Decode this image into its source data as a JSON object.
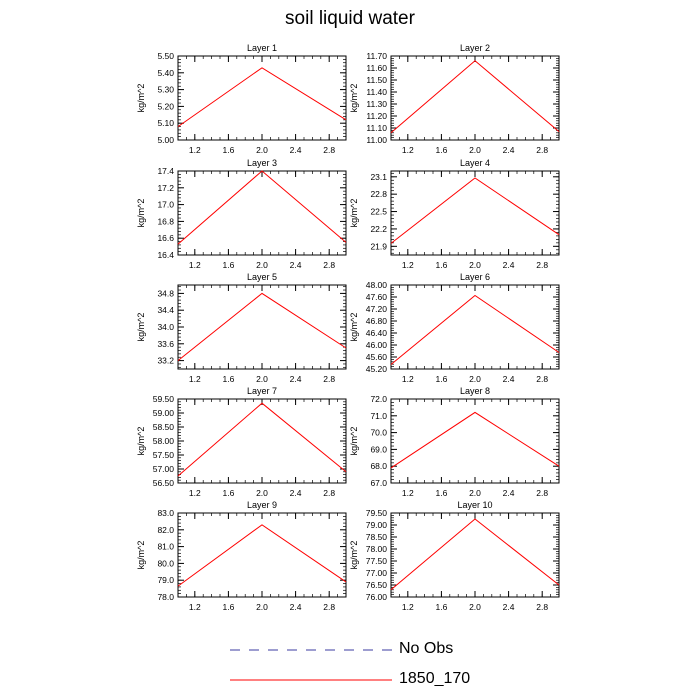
{
  "title": "soil liquid water",
  "legend": {
    "entries": [
      {
        "label": "No Obs",
        "style": "dashed",
        "color": "#3b3ba0"
      },
      {
        "label": "1850_170",
        "style": "solid",
        "color": "#ff0000"
      }
    ]
  },
  "line_color": "#ff0000",
  "chart_data": [
    {
      "type": "line",
      "title": "Layer 1",
      "ylabel": "kg/m^2",
      "xlim": [
        1.0,
        3.0
      ],
      "ylim": [
        5.0,
        5.5
      ],
      "xticks": [
        "1.2",
        "1.6",
        "2.0",
        "2.4",
        "2.8"
      ],
      "yticks": [
        "5.00",
        "5.10",
        "5.20",
        "5.30",
        "5.40",
        "5.50"
      ],
      "series": [
        {
          "name": "1850_170",
          "x": [
            1,
            2,
            3
          ],
          "y": [
            5.08,
            5.43,
            5.12
          ]
        }
      ]
    },
    {
      "type": "line",
      "title": "Layer 2",
      "ylabel": "kg/m^2",
      "xlim": [
        1.0,
        3.0
      ],
      "ylim": [
        11.0,
        11.7
      ],
      "xticks": [
        "1.2",
        "1.6",
        "2.0",
        "2.4",
        "2.8"
      ],
      "yticks": [
        "11.00",
        "11.10",
        "11.20",
        "11.30",
        "11.40",
        "11.50",
        "11.60",
        "11.70"
      ],
      "series": [
        {
          "name": "1850_170",
          "x": [
            1,
            2,
            3
          ],
          "y": [
            11.06,
            11.66,
            11.07
          ]
        }
      ]
    },
    {
      "type": "line",
      "title": "Layer 3",
      "ylabel": "kg/m^2",
      "xlim": [
        1.0,
        3.0
      ],
      "ylim": [
        16.4,
        17.4
      ],
      "xticks": [
        "1.2",
        "1.6",
        "2.0",
        "2.4",
        "2.8"
      ],
      "yticks": [
        "16.4",
        "16.6",
        "16.8",
        "17.0",
        "17.2",
        "17.4"
      ],
      "series": [
        {
          "name": "1850_170",
          "x": [
            1,
            2,
            3
          ],
          "y": [
            16.53,
            17.4,
            16.55
          ]
        }
      ]
    },
    {
      "type": "line",
      "title": "Layer 4",
      "ylabel": "kg/m^2",
      "xlim": [
        1.0,
        3.0
      ],
      "ylim": [
        21.75,
        23.2
      ],
      "xticks": [
        "1.2",
        "1.6",
        "2.0",
        "2.4",
        "2.8"
      ],
      "yticks": [
        "21.9",
        "22.2",
        "22.5",
        "22.8",
        "23.1"
      ],
      "series": [
        {
          "name": "1850_170",
          "x": [
            1,
            2,
            3
          ],
          "y": [
            21.95,
            23.08,
            22.1
          ]
        }
      ]
    },
    {
      "type": "line",
      "title": "Layer 5",
      "ylabel": "kg/m^2",
      "xlim": [
        1.0,
        3.0
      ],
      "ylim": [
        33.0,
        35.0
      ],
      "xticks": [
        "1.2",
        "1.6",
        "2.0",
        "2.4",
        "2.8"
      ],
      "yticks": [
        "33.2",
        "33.6",
        "34.0",
        "34.4",
        "34.8"
      ],
      "series": [
        {
          "name": "1850_170",
          "x": [
            1,
            2,
            3
          ],
          "y": [
            33.2,
            34.8,
            33.5
          ]
        }
      ]
    },
    {
      "type": "line",
      "title": "Layer 6",
      "ylabel": "kg/m^2",
      "xlim": [
        1.0,
        3.0
      ],
      "ylim": [
        45.2,
        48.0
      ],
      "xticks": [
        "1.2",
        "1.6",
        "2.0",
        "2.4",
        "2.8"
      ],
      "yticks": [
        "45.20",
        "45.60",
        "46.00",
        "46.40",
        "46.80",
        "47.20",
        "47.60",
        "48.00"
      ],
      "series": [
        {
          "name": "1850_170",
          "x": [
            1,
            2,
            3
          ],
          "y": [
            45.35,
            47.65,
            45.75
          ]
        }
      ]
    },
    {
      "type": "line",
      "title": "Layer 7",
      "ylabel": "kg/m^2",
      "xlim": [
        1.0,
        3.0
      ],
      "ylim": [
        56.5,
        59.5
      ],
      "xticks": [
        "1.2",
        "1.6",
        "2.0",
        "2.4",
        "2.8"
      ],
      "yticks": [
        "56.50",
        "57.00",
        "57.50",
        "58.00",
        "58.50",
        "59.00",
        "59.50"
      ],
      "series": [
        {
          "name": "1850_170",
          "x": [
            1,
            2,
            3
          ],
          "y": [
            56.75,
            59.35,
            56.9
          ]
        }
      ]
    },
    {
      "type": "line",
      "title": "Layer 8",
      "ylabel": "kg/m^2",
      "xlim": [
        1.0,
        3.0
      ],
      "ylim": [
        67.0,
        72.0
      ],
      "xticks": [
        "1.2",
        "1.6",
        "2.0",
        "2.4",
        "2.8"
      ],
      "yticks": [
        "67.0",
        "68.0",
        "69.0",
        "70.0",
        "71.0",
        "72.0"
      ],
      "series": [
        {
          "name": "1850_170",
          "x": [
            1,
            2,
            3
          ],
          "y": [
            67.9,
            71.2,
            68.0
          ]
        }
      ]
    },
    {
      "type": "line",
      "title": "Layer 9",
      "ylabel": "kg/m^2",
      "xlim": [
        1.0,
        3.0
      ],
      "ylim": [
        78.0,
        83.0
      ],
      "xticks": [
        "1.2",
        "1.6",
        "2.0",
        "2.4",
        "2.8"
      ],
      "yticks": [
        "78.0",
        "79.0",
        "80.0",
        "81.0",
        "82.0",
        "83.0"
      ],
      "series": [
        {
          "name": "1850_170",
          "x": [
            1,
            2,
            3
          ],
          "y": [
            78.65,
            82.3,
            78.9
          ]
        }
      ]
    },
    {
      "type": "line",
      "title": "Layer 10",
      "ylabel": "kg/m^2",
      "xlim": [
        1.0,
        3.0
      ],
      "ylim": [
        76.0,
        79.5
      ],
      "xticks": [
        "1.2",
        "1.6",
        "2.0",
        "2.4",
        "2.8"
      ],
      "yticks": [
        "76.00",
        "76.50",
        "77.00",
        "77.50",
        "78.00",
        "78.50",
        "79.00",
        "79.50"
      ],
      "series": [
        {
          "name": "1850_170",
          "x": [
            1,
            2,
            3
          ],
          "y": [
            76.3,
            79.25,
            76.5
          ]
        }
      ]
    }
  ]
}
